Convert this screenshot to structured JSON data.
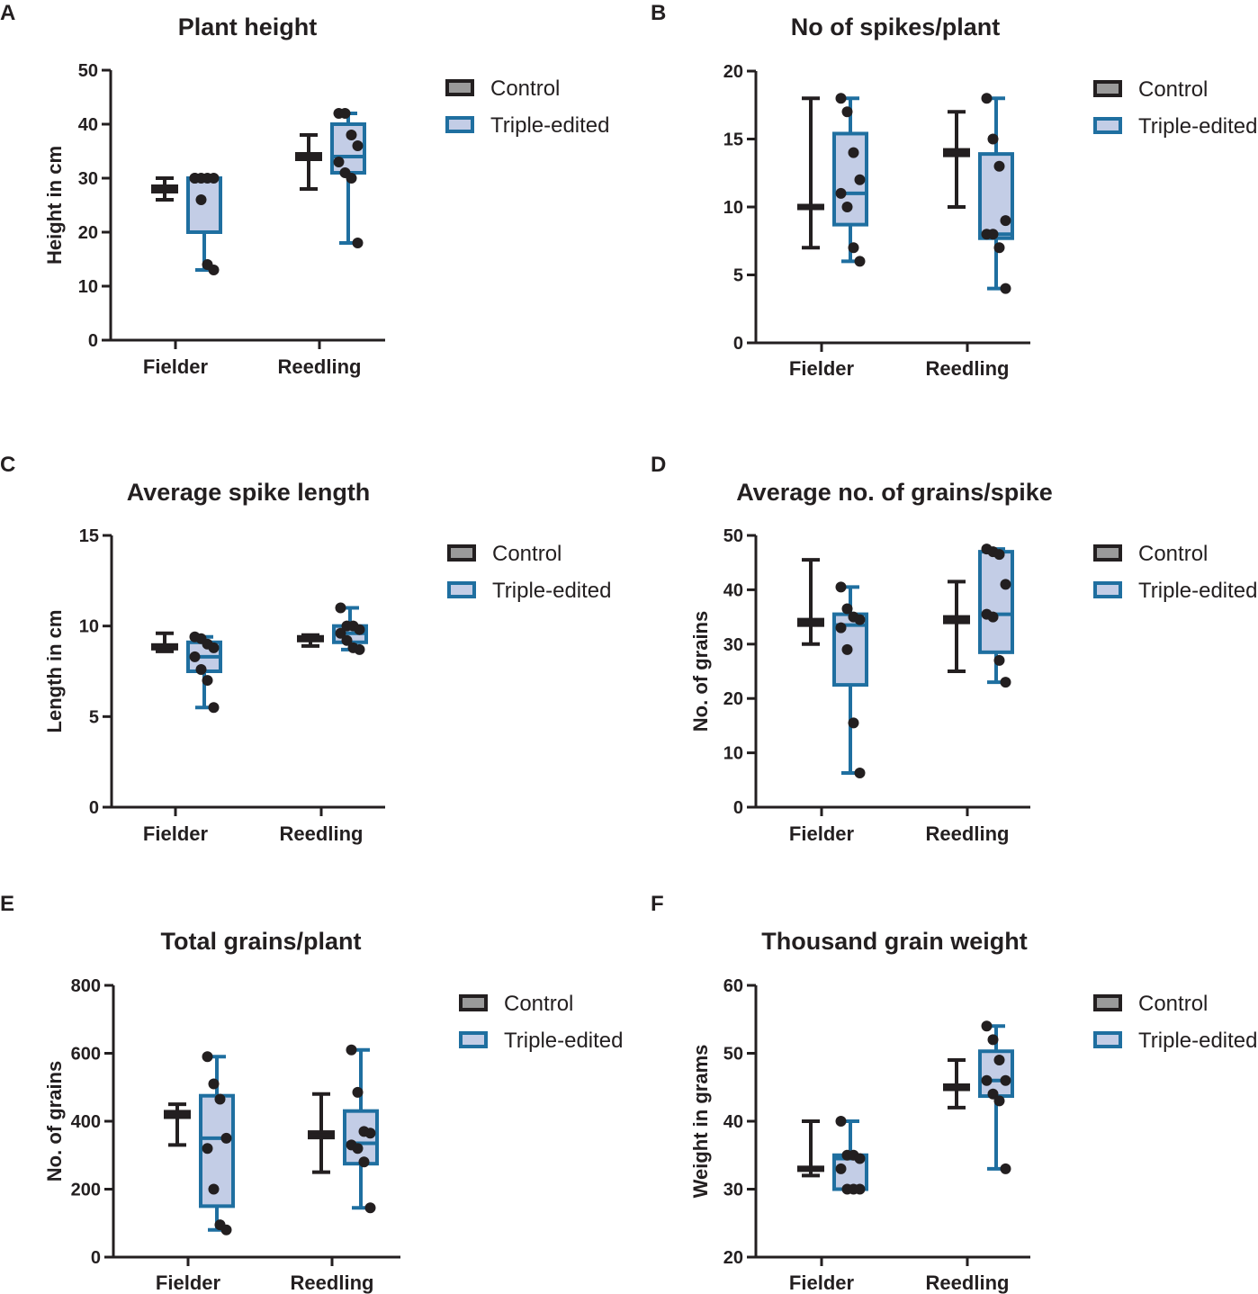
{
  "legend_labels": [
    "Control",
    "Triple-edited"
  ],
  "colors": {
    "control_line": "#231f20",
    "control_fill": "#9a9a9a",
    "edited_line": "#1f6fa0",
    "edited_fill": "#c3cde6",
    "point": "#231f20",
    "axis": "#231f20"
  },
  "chart_data": [
    {
      "panel": "A",
      "type": "box",
      "title": "Plant height",
      "ylabel": "Height in cm",
      "categories": [
        "Fielder",
        "Reedling"
      ],
      "ylim": [
        0,
        50
      ],
      "yticks": [
        0,
        10,
        20,
        30,
        40,
        50
      ],
      "ytick_labels": [
        "0",
        "10",
        "20",
        "30",
        "40",
        "50"
      ],
      "legend": [
        "Control",
        "Triple-edited"
      ],
      "series": [
        {
          "name": "Control",
          "boxes": [
            {
              "min": 26,
              "q1": 27.5,
              "median": 28,
              "q3": 28.5,
              "max": 30,
              "points": []
            },
            {
              "min": 28,
              "q1": 33.5,
              "median": 34,
              "q3": 34.5,
              "max": 38,
              "points": []
            }
          ]
        },
        {
          "name": "Triple-edited",
          "boxes": [
            {
              "min": 13,
              "q1": 20,
              "median": 30,
              "q3": 30,
              "max": 30,
              "points": [
                30,
                30,
                30,
                30,
                30,
                26,
                14,
                13
              ]
            },
            {
              "min": 18,
              "q1": 31,
              "median": 34,
              "q3": 40,
              "max": 42,
              "points": [
                42,
                42,
                38,
                36,
                33,
                31,
                30,
                18
              ]
            }
          ]
        }
      ]
    },
    {
      "panel": "B",
      "type": "box",
      "title": "No of spikes/plant",
      "ylabel": "",
      "categories": [
        "Fielder",
        "Reedling"
      ],
      "ylim": [
        0,
        20
      ],
      "yticks": [
        0,
        5,
        10,
        15,
        20
      ],
      "ytick_labels": [
        "0",
        "5",
        "10",
        "15",
        "20"
      ],
      "legend": [
        "Control",
        "Triple-edited"
      ],
      "series": [
        {
          "name": "Control",
          "boxes": [
            {
              "min": 7,
              "q1": 9.9,
              "median": 10,
              "q3": 10.1,
              "max": 18,
              "points": []
            },
            {
              "min": 10,
              "q1": 13.8,
              "median": 14,
              "q3": 14.2,
              "max": 17,
              "points": []
            }
          ]
        },
        {
          "name": "Triple-edited",
          "boxes": [
            {
              "min": 6,
              "q1": 8.7,
              "median": 11,
              "q3": 15.4,
              "max": 18,
              "points": [
                18,
                17,
                14,
                12,
                11,
                10,
                7,
                6
              ]
            },
            {
              "min": 4,
              "q1": 7.7,
              "median": 8,
              "q3": 13.9,
              "max": 18,
              "points": [
                18,
                15,
                13,
                9,
                8,
                8,
                7,
                4
              ]
            }
          ]
        }
      ]
    },
    {
      "panel": "C",
      "type": "box",
      "title": "Average spike length",
      "ylabel": "Length in cm",
      "categories": [
        "Fielder",
        "Reedling"
      ],
      "ylim": [
        0,
        15
      ],
      "yticks": [
        0,
        5,
        10,
        15
      ],
      "ytick_labels": [
        "0",
        "5",
        "10",
        "15"
      ],
      "legend": [
        "Control",
        "Triple-edited"
      ],
      "series": [
        {
          "name": "Control",
          "boxes": [
            {
              "min": 8.6,
              "q1": 8.75,
              "median": 8.85,
              "q3": 8.95,
              "max": 9.6,
              "points": []
            },
            {
              "min": 8.9,
              "q1": 9.2,
              "median": 9.3,
              "q3": 9.4,
              "max": 9.5,
              "points": []
            }
          ]
        },
        {
          "name": "Triple-edited",
          "boxes": [
            {
              "min": 5.5,
              "q1": 7.5,
              "median": 8.3,
              "q3": 9.1,
              "max": 9.4,
              "points": [
                9.4,
                9.3,
                9.0,
                8.8,
                8.3,
                7.6,
                7.0,
                5.5
              ]
            },
            {
              "min": 8.7,
              "q1": 9.1,
              "median": 9.6,
              "q3": 10.0,
              "max": 11.0,
              "points": [
                11.0,
                10.0,
                10.0,
                9.8,
                9.6,
                9.2,
                8.8,
                8.7
              ]
            }
          ]
        }
      ]
    },
    {
      "panel": "D",
      "type": "box",
      "title": "Average no. of grains/spike",
      "ylabel": "No. of grains",
      "categories": [
        "Fielder",
        "Reedling"
      ],
      "ylim": [
        0,
        50
      ],
      "yticks": [
        0,
        10,
        20,
        30,
        40,
        50
      ],
      "ytick_labels": [
        "0",
        "10",
        "20",
        "30",
        "40",
        "50"
      ],
      "legend": [
        "Control",
        "Triple-edited"
      ],
      "series": [
        {
          "name": "Control",
          "boxes": [
            {
              "min": 30,
              "q1": 33.5,
              "median": 34,
              "q3": 34.5,
              "max": 45.5,
              "points": []
            },
            {
              "min": 25,
              "q1": 34,
              "median": 34.5,
              "q3": 35,
              "max": 41.5,
              "points": []
            }
          ]
        },
        {
          "name": "Triple-edited",
          "boxes": [
            {
              "min": 6.3,
              "q1": 22.5,
              "median": 33.5,
              "q3": 35.5,
              "max": 40.5,
              "points": [
                40.5,
                36.5,
                35,
                34.5,
                33,
                29,
                15.5,
                6.3
              ]
            },
            {
              "min": 23,
              "q1": 28.5,
              "median": 35.5,
              "q3": 47,
              "max": 47.5,
              "points": [
                47.5,
                47,
                46.5,
                41,
                35.5,
                35,
                27,
                23
              ]
            }
          ]
        }
      ]
    },
    {
      "panel": "E",
      "type": "box",
      "title": "Total grains/plant",
      "ylabel": "No. of grains",
      "categories": [
        "Fielder",
        "Reedling"
      ],
      "ylim": [
        0,
        800
      ],
      "yticks": [
        0,
        200,
        400,
        600,
        800
      ],
      "ytick_labels": [
        "0",
        "200",
        "400",
        "600",
        "800"
      ],
      "legend": [
        "Control",
        "Triple-edited"
      ],
      "series": [
        {
          "name": "Control",
          "boxes": [
            {
              "min": 330,
              "q1": 412,
              "median": 420,
              "q3": 428,
              "max": 450,
              "points": []
            },
            {
              "min": 250,
              "q1": 352,
              "median": 360,
              "q3": 368,
              "max": 480,
              "points": []
            }
          ]
        },
        {
          "name": "Triple-edited",
          "boxes": [
            {
              "min": 80,
              "q1": 150,
              "median": 350,
              "q3": 475,
              "max": 590,
              "points": [
                590,
                510,
                465,
                350,
                320,
                200,
                95,
                80
              ]
            },
            {
              "min": 145,
              "q1": 275,
              "median": 335,
              "q3": 430,
              "max": 610,
              "points": [
                610,
                485,
                370,
                365,
                330,
                320,
                280,
                145
              ]
            }
          ]
        }
      ]
    },
    {
      "panel": "F",
      "type": "box",
      "title": "Thousand grain weight",
      "ylabel": "Weight in grams",
      "categories": [
        "Fielder",
        "Reedling"
      ],
      "ylim": [
        20,
        60
      ],
      "yticks": [
        20,
        30,
        40,
        50,
        60
      ],
      "ytick_labels": [
        "20",
        "30",
        "40",
        "50",
        "60"
      ],
      "legend": [
        "Control",
        "Triple-edited"
      ],
      "series": [
        {
          "name": "Control",
          "boxes": [
            {
              "min": 32,
              "q1": 32.8,
              "median": 33,
              "q3": 33.2,
              "max": 40,
              "points": []
            },
            {
              "min": 42,
              "q1": 44.7,
              "median": 45,
              "q3": 45.3,
              "max": 49,
              "points": []
            }
          ]
        },
        {
          "name": "Triple-edited",
          "boxes": [
            {
              "min": 30,
              "q1": 30,
              "median": 34.5,
              "q3": 35,
              "max": 40,
              "points": [
                40,
                35,
                35,
                34.5,
                33,
                30,
                30,
                30
              ]
            },
            {
              "min": 33,
              "q1": 43.7,
              "median": 46,
              "q3": 50.3,
              "max": 54,
              "points": [
                54,
                52,
                49,
                46,
                46,
                44,
                43,
                33
              ]
            }
          ]
        }
      ]
    }
  ]
}
